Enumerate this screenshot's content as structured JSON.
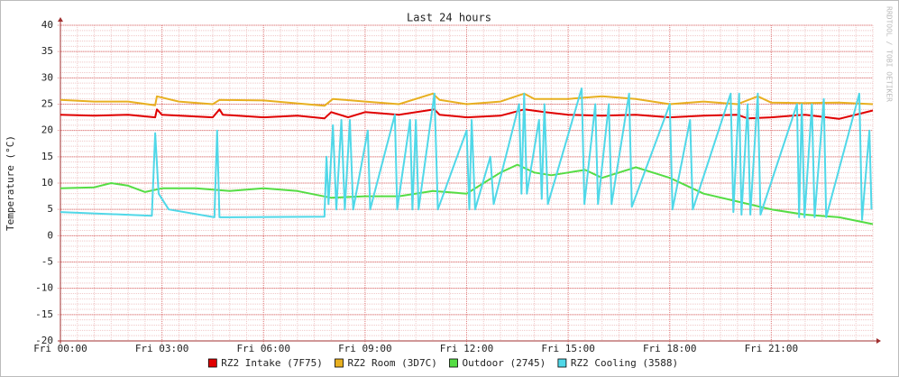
{
  "chart_data": {
    "type": "line",
    "title": "Last 24 hours",
    "ylabel": "Temperature (°C)",
    "watermark": "RRDTOOL / TOBI OETIKER",
    "xlim": [
      0,
      24
    ],
    "ylim": [
      -20,
      40
    ],
    "xticks": [
      {
        "value": 0,
        "label": "Fri 00:00"
      },
      {
        "value": 3,
        "label": "Fri 03:00"
      },
      {
        "value": 6,
        "label": "Fri 06:00"
      },
      {
        "value": 9,
        "label": "Fri 09:00"
      },
      {
        "value": 12,
        "label": "Fri 12:00"
      },
      {
        "value": 15,
        "label": "Fri 15:00"
      },
      {
        "value": 18,
        "label": "Fri 18:00"
      },
      {
        "value": 21,
        "label": "Fri 21:00"
      }
    ],
    "yticks": [
      -20,
      -15,
      -10,
      -5,
      0,
      5,
      10,
      15,
      20,
      25,
      30,
      35,
      40
    ],
    "grid": true,
    "legend": "bottom",
    "series": [
      {
        "name": "RZ2 Intake (7F75)",
        "color": "#e00000",
        "x": [
          0,
          1,
          2,
          2.8,
          2.85,
          3,
          4.5,
          4.7,
          4.8,
          6,
          7,
          7.8,
          8,
          8.5,
          9,
          10,
          11.05,
          11.2,
          12,
          13,
          13.7,
          14.3,
          15,
          16,
          17,
          18,
          19,
          20,
          20.3,
          21,
          22,
          23,
          24
        ],
        "values": [
          23,
          22.8,
          23,
          22.5,
          24,
          23,
          22.5,
          24,
          23,
          22.5,
          22.8,
          22.3,
          23.5,
          22.5,
          23.5,
          23,
          24,
          23,
          22.5,
          22.8,
          24,
          23.5,
          23,
          22.8,
          23,
          22.5,
          22.8,
          23,
          22.3,
          22.5,
          23,
          22.2,
          23.8
        ]
      },
      {
        "name": "RZ2 Room (3D7C)",
        "color": "#e8b020",
        "x": [
          0,
          1,
          2,
          2.8,
          2.85,
          3.5,
          4.5,
          4.7,
          6,
          7.8,
          8.05,
          9,
          10,
          11,
          11.2,
          12,
          13,
          13.7,
          14,
          15,
          15.4,
          16,
          17,
          18,
          19,
          20,
          20.6,
          21,
          22,
          23,
          24
        ],
        "values": [
          25.8,
          25.5,
          25.5,
          24.8,
          26.5,
          25.5,
          25,
          25.8,
          25.7,
          24.7,
          26,
          25.5,
          25,
          27,
          25.8,
          25,
          25.5,
          27,
          26,
          26,
          26.2,
          26.5,
          26,
          25,
          25.5,
          25,
          26.5,
          25.3,
          25.2,
          25.3,
          25
        ]
      },
      {
        "name": "Outdoor (2745)",
        "color": "#55dd44",
        "x": [
          0,
          1,
          1.5,
          2,
          2.5,
          3,
          4,
          5,
          6,
          7,
          8,
          9,
          10,
          11,
          12,
          12.5,
          13,
          13.5,
          14,
          14.5,
          15,
          15.5,
          16,
          16.5,
          17,
          17.5,
          18,
          19,
          20,
          21,
          22,
          23,
          24
        ],
        "values": [
          9,
          9.2,
          10,
          9.5,
          8.3,
          9,
          9,
          8.5,
          9,
          8.5,
          7.2,
          7.5,
          7.5,
          8.5,
          8,
          10,
          12,
          13.5,
          12,
          11.5,
          12,
          12.5,
          11,
          12,
          13,
          12,
          11,
          8,
          6.5,
          5,
          4,
          3.5,
          2.2
        ]
      },
      {
        "name": "RZ2 Cooling (3588)",
        "color": "#50d8e8",
        "x": [
          0,
          2.7,
          2.8,
          2.9,
          3.2,
          4.55,
          4.63,
          4.7,
          7.8,
          7.86,
          7.92,
          8.05,
          8.15,
          8.3,
          8.4,
          8.55,
          8.65,
          9.08,
          9.15,
          9.88,
          9.95,
          10.33,
          10.4,
          10.5,
          10.58,
          11.05,
          11.15,
          12,
          12.08,
          12.15,
          12.25,
          12.7,
          12.8,
          13.55,
          13.62,
          13.7,
          13.78,
          14.14,
          14.22,
          14.3,
          14.4,
          15.4,
          15.48,
          15.8,
          15.88,
          16.2,
          16.28,
          16.8,
          16.88,
          18,
          18.08,
          18.6,
          18.68,
          19.8,
          19.88,
          20.05,
          20.12,
          20.3,
          20.38,
          20.6,
          20.68,
          21.76,
          21.82,
          21.9,
          21.98,
          22.2,
          22.28,
          22.55,
          22.62,
          23.6,
          23.68,
          23.9,
          23.96
        ],
        "values": [
          4.5,
          3.8,
          19.5,
          8,
          5,
          3.5,
          20,
          3.5,
          3.6,
          15,
          6,
          21,
          5,
          22,
          5,
          22,
          5,
          20,
          5,
          23,
          5,
          22,
          5,
          22,
          5,
          27,
          5,
          20,
          5,
          22,
          5,
          15,
          6,
          25,
          8,
          27,
          8,
          22,
          7,
          25,
          6,
          28,
          6,
          25,
          6,
          25,
          6,
          27,
          5.5,
          25,
          5,
          22,
          5,
          27,
          4.5,
          27,
          4,
          25,
          4,
          27,
          4,
          25,
          3.5,
          25,
          3.5,
          25,
          3.5,
          26,
          3.5,
          27,
          3,
          20,
          5
        ]
      }
    ]
  }
}
